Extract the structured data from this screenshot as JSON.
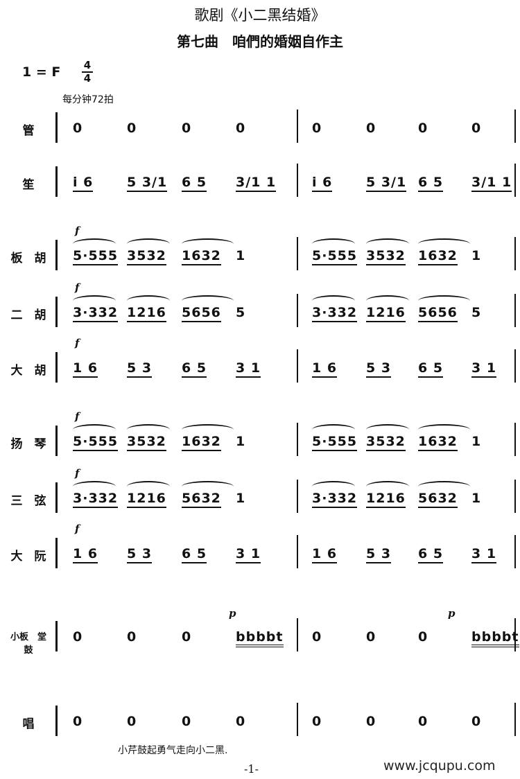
{
  "header": {
    "title": "歌剧《小二黑结婚》",
    "subtitle": "第七曲　咱們的婚姻自作主",
    "key": "1 = F",
    "time_top": "4",
    "time_bottom": "4",
    "tempo": "每分钟72拍"
  },
  "rows": [
    {
      "label": "管",
      "m1": [
        "0",
        "0",
        "0",
        "0"
      ],
      "m2": [
        "0",
        "0",
        "0",
        "0"
      ]
    },
    {
      "label": "笙",
      "m1": [
        "i 6",
        "5 3/1",
        "6 5",
        "3/1  1"
      ],
      "m2": [
        "i 6",
        "5 3/1",
        "6 5",
        "3/1  1"
      ]
    },
    {
      "label": "板　胡",
      "dyn": "f",
      "m1": [
        "5·555",
        "3532",
        "1632",
        "1"
      ],
      "m2": [
        "5·555",
        "3532",
        "1632",
        "1"
      ]
    },
    {
      "label": "二　胡",
      "dyn": "f",
      "m1": [
        "3·332",
        "1216",
        "5656",
        "5"
      ],
      "m2": [
        "3·332",
        "1216",
        "5656",
        "5"
      ]
    },
    {
      "label": "大　胡",
      "dyn": "f",
      "m1": [
        "1  6",
        "5 3",
        "6 5",
        "3   1"
      ],
      "m2": [
        "1  6",
        "5 3",
        "6 5",
        "3   1"
      ]
    },
    {
      "label": "扬　琴",
      "dyn": "f",
      "m1": [
        "5·555",
        "3532",
        "1632",
        "1"
      ],
      "m2": [
        "5·555",
        "3532",
        "1632",
        "1"
      ]
    },
    {
      "label": "三　弦",
      "dyn": "f",
      "m1": [
        "3·332",
        "1216",
        "5632",
        "1"
      ],
      "m2": [
        "3·332",
        "1216",
        "5632",
        "1"
      ]
    },
    {
      "label": "大　阮",
      "dyn": "f",
      "m1": [
        "1  6",
        "5 3",
        "6 5",
        "3   1"
      ],
      "m2": [
        "1  6",
        "5 3",
        "6 5",
        "3   1"
      ]
    },
    {
      "label": "小板　堂鼓",
      "dyn4": "p",
      "m1": [
        "0",
        "0",
        "0",
        "bbbbt"
      ],
      "m2": [
        "0",
        "0",
        "0",
        "bbbbt"
      ]
    },
    {
      "label": "唱",
      "m1": [
        "0",
        "0",
        "0",
        "0"
      ],
      "m2": [
        "0",
        "0",
        "0",
        "0"
      ]
    }
  ],
  "lyric": "小芹鼓起勇气走向小二黑.",
  "page_number": "-1-",
  "watermark": "www.jcqupu.com"
}
